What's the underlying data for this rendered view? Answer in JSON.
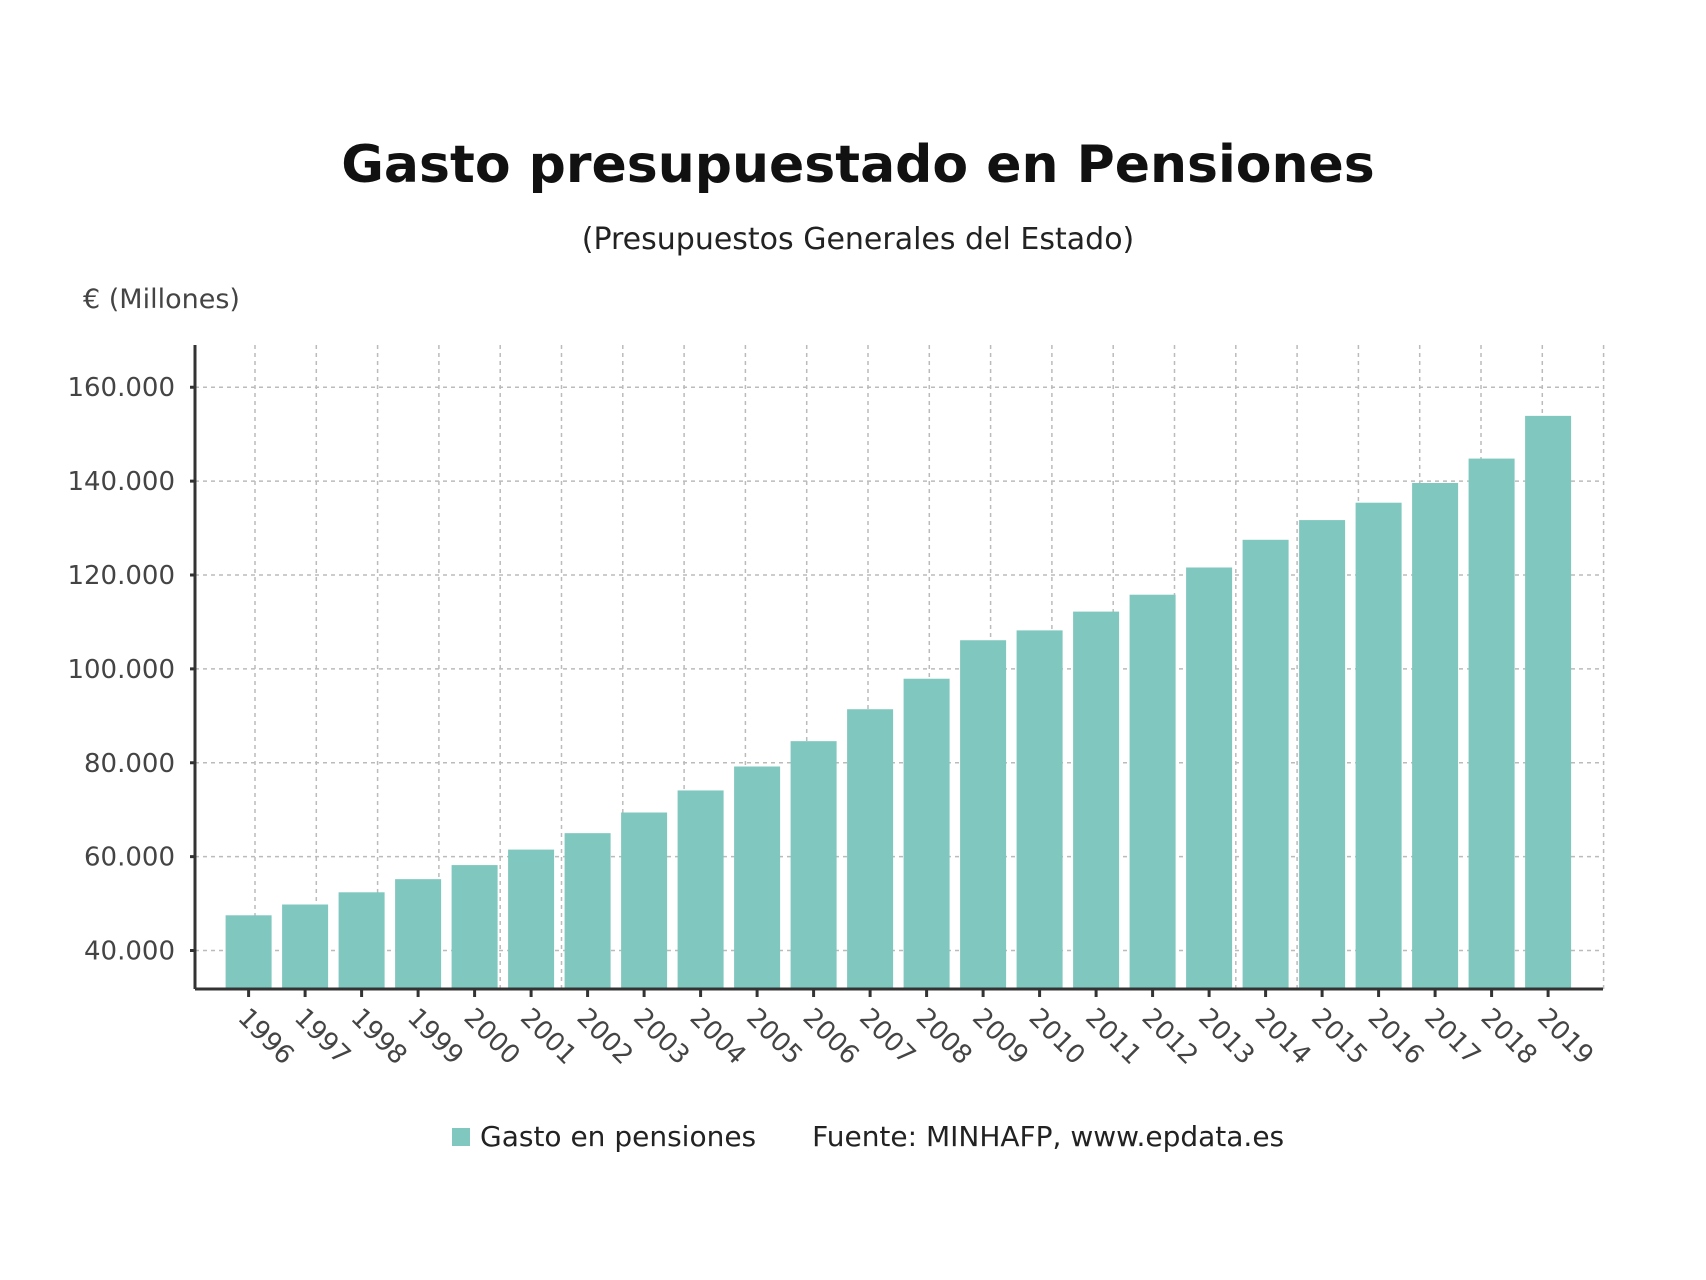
{
  "chart_data": {
    "type": "bar",
    "title": "Gasto presupuestado en Pensiones",
    "subtitle": "(Presupuestos Generales del Estado)",
    "ylabel": "€ (Millones)",
    "xlabel": "",
    "categories": [
      "1996",
      "1997",
      "1998",
      "1999",
      "2000",
      "2001",
      "2002",
      "2003",
      "2004",
      "2005",
      "2006",
      "2007",
      "2008",
      "2009",
      "2010",
      "2011",
      "2012",
      "2013",
      "2014",
      "2015",
      "2016",
      "2017",
      "2018",
      "2019"
    ],
    "series": [
      {
        "name": "Gasto en pensiones",
        "color": "#7fc7bf",
        "values": [
          47500,
          49800,
          52400,
          55200,
          58200,
          61500,
          65000,
          69400,
          74100,
          79200,
          84600,
          91400,
          97900,
          106100,
          108200,
          112200,
          115800,
          121600,
          127500,
          131700,
          135400,
          139600,
          144800,
          153900
        ]
      }
    ],
    "yticks": [
      40000,
      60000,
      80000,
      100000,
      120000,
      140000,
      160000
    ],
    "ytick_labels": [
      "40.000",
      "60.000",
      "80.000",
      "100.000",
      "120.000",
      "140.000",
      "160.000"
    ],
    "ylim": [
      31800,
      169000
    ],
    "grid": true,
    "legend_position": "bottom",
    "source": "Fuente: MINHAFP, www.epdata.es"
  }
}
